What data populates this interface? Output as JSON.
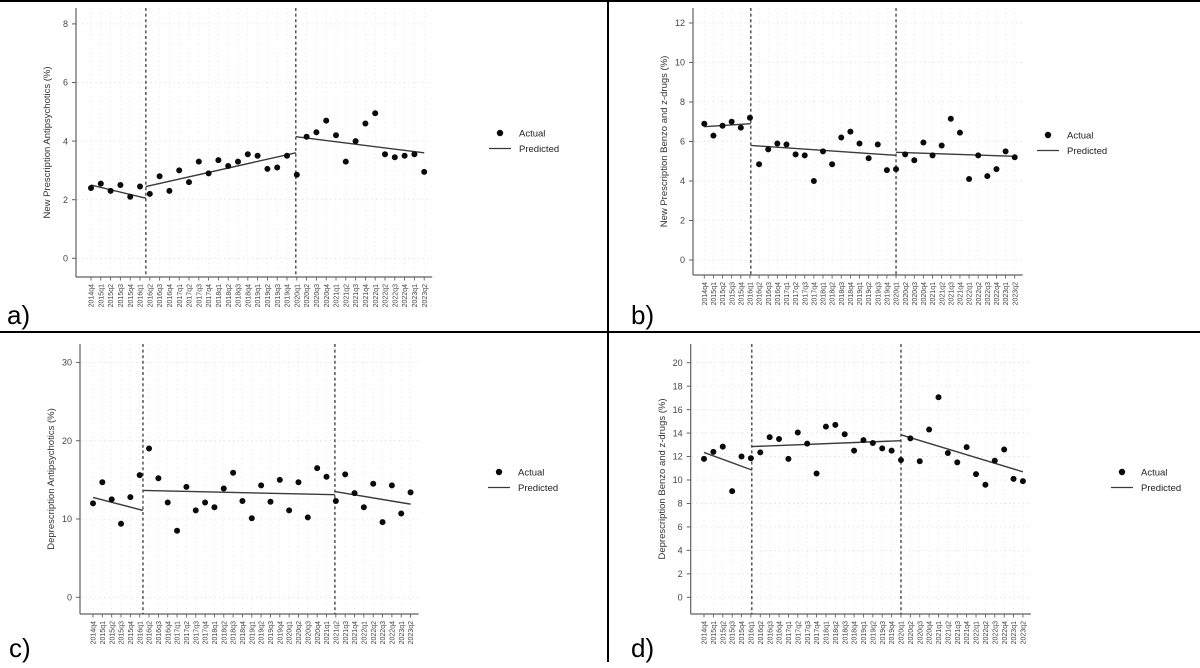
{
  "chart_data": {
    "type": "interrupted_time_series_scatter",
    "legend": {
      "actual": "Actual",
      "predicted": "Predicted",
      "position": "right-middle"
    },
    "grid": "dotted light grid on",
    "categories": [
      "2014q4",
      "2015q1",
      "2015q2",
      "2015q3",
      "2015q4",
      "2016q1",
      "2016q2",
      "2016q3",
      "2016q4",
      "2017q1",
      "2017q2",
      "2017q3",
      "2017q4",
      "2018q1",
      "2018q2",
      "2018q3",
      "2018q4",
      "2019q1",
      "2019q2",
      "2019q3",
      "2019q4",
      "2020q1",
      "2020q2",
      "2020q3",
      "2020q4",
      "2021q1",
      "2021q2",
      "2021q3",
      "2021q4",
      "2022q1",
      "2022q2",
      "2022q3",
      "2022q4",
      "2023q1",
      "2023q2"
    ],
    "panels": [
      {
        "panel_label": "a)",
        "ylabel": "New Prescription Antipsychotics (%)",
        "yticks": [
          0,
          2,
          4,
          6,
          8
        ],
        "ylim": [
          0,
          8
        ],
        "interruptions_after": [
          "2016q1",
          "2019q4"
        ],
        "actual": [
          2.4,
          2.55,
          2.3,
          2.5,
          2.1,
          2.45,
          2.2,
          2.8,
          2.3,
          3.0,
          2.6,
          3.3,
          2.9,
          3.35,
          3.15,
          3.3,
          3.55,
          3.5,
          3.05,
          3.1,
          3.5,
          2.85,
          4.15,
          4.3,
          4.7,
          4.2,
          3.3,
          4.0,
          4.6,
          4.95,
          3.55,
          3.45,
          3.5,
          3.55,
          2.95
        ],
        "predicted_segments": [
          {
            "from": "2014q4",
            "to": "interruption-1",
            "start_val": 2.5,
            "end_val": 2.05
          },
          {
            "from": "interruption-1",
            "to": "interruption-2",
            "start_val": 2.45,
            "end_val": 3.6
          },
          {
            "from": "interruption-2",
            "to": "2023q2",
            "start_val": 4.15,
            "end_val": 3.6
          }
        ]
      },
      {
        "panel_label": "b)",
        "ylabel": "New Prescription Benzo and z-drugs (%)",
        "yticks": [
          0,
          2,
          4,
          6,
          8,
          10,
          12
        ],
        "ylim": [
          0,
          12
        ],
        "interruptions_after": [
          "2016q1",
          "2019q4"
        ],
        "actual": [
          6.9,
          6.3,
          6.8,
          7.0,
          6.7,
          7.2,
          4.85,
          5.6,
          5.9,
          5.85,
          5.35,
          5.3,
          4.0,
          5.5,
          4.85,
          6.2,
          6.5,
          5.9,
          5.15,
          5.85,
          4.55,
          4.6,
          5.35,
          5.05,
          5.95,
          5.3,
          5.8,
          7.15,
          6.45,
          4.1,
          5.3,
          4.25,
          4.6,
          5.5,
          5.2
        ],
        "predicted_segments": [
          {
            "from": "2014q4",
            "to": "interruption-1",
            "start_val": 6.75,
            "end_val": 6.9
          },
          {
            "from": "interruption-1",
            "to": "interruption-2",
            "start_val": 5.8,
            "end_val": 5.3
          },
          {
            "from": "interruption-2",
            "to": "2023q2",
            "start_val": 5.45,
            "end_val": 5.25
          }
        ]
      },
      {
        "panel_label": "c)",
        "ylabel": "Deprescription Antipsychotics (%)",
        "yticks": [
          0,
          10,
          20,
          30
        ],
        "ylim": [
          0,
          30
        ],
        "interruptions_after": [
          "2016q1",
          "2021q1"
        ],
        "actual": [
          12.0,
          14.7,
          12.5,
          9.4,
          12.8,
          15.6,
          19.0,
          15.2,
          12.1,
          8.5,
          14.1,
          11.1,
          12.1,
          11.5,
          13.9,
          15.9,
          12.3,
          10.1,
          14.3,
          12.2,
          15.0,
          11.1,
          14.7,
          10.2,
          16.5,
          15.4,
          12.3,
          15.7,
          13.3,
          11.5,
          14.5,
          9.6,
          14.3,
          10.7,
          13.4
        ],
        "predicted_segments": [
          {
            "from": "2014q4",
            "to": "interruption-1",
            "start_val": 12.75,
            "end_val": 11.1
          },
          {
            "from": "interruption-1",
            "to": "interruption-2",
            "start_val": 13.65,
            "end_val": 13.1
          },
          {
            "from": "interruption-2",
            "to": "2023q2",
            "start_val": 13.5,
            "end_val": 11.9
          }
        ]
      },
      {
        "panel_label": "d)",
        "ylabel": "Deprescription Benzo and z-drugs (%)",
        "yticks": [
          0,
          2,
          4,
          6,
          8,
          10,
          12,
          14,
          16,
          18,
          20
        ],
        "ylim": [
          0,
          20
        ],
        "interruptions_after": [
          "2016q1",
          "2019q4"
        ],
        "actual": [
          11.8,
          12.4,
          12.85,
          9.05,
          12.0,
          11.85,
          12.35,
          13.65,
          13.5,
          11.8,
          14.05,
          13.1,
          10.55,
          14.55,
          14.7,
          13.9,
          12.5,
          13.4,
          13.15,
          12.7,
          12.5,
          11.7,
          13.55,
          11.6,
          14.3,
          17.05,
          12.3,
          11.5,
          12.8,
          10.5,
          9.6,
          11.65,
          12.6,
          10.1,
          9.9
        ],
        "predicted_segments": [
          {
            "from": "2014q4",
            "to": "interruption-1",
            "start_val": 12.35,
            "end_val": 10.85
          },
          {
            "from": "interruption-1",
            "to": "interruption-2",
            "start_val": 12.85,
            "end_val": 13.35
          },
          {
            "from": "interruption-2",
            "to": "2023q2",
            "start_val": 13.85,
            "end_val": 10.7
          }
        ]
      }
    ],
    "colors": {
      "point": "#0a0a0a",
      "predicted_line": "#3a3a3a",
      "axis": "#606060",
      "grid": "#dcdcdc",
      "interruption_line": "#1a1a1a"
    }
  }
}
